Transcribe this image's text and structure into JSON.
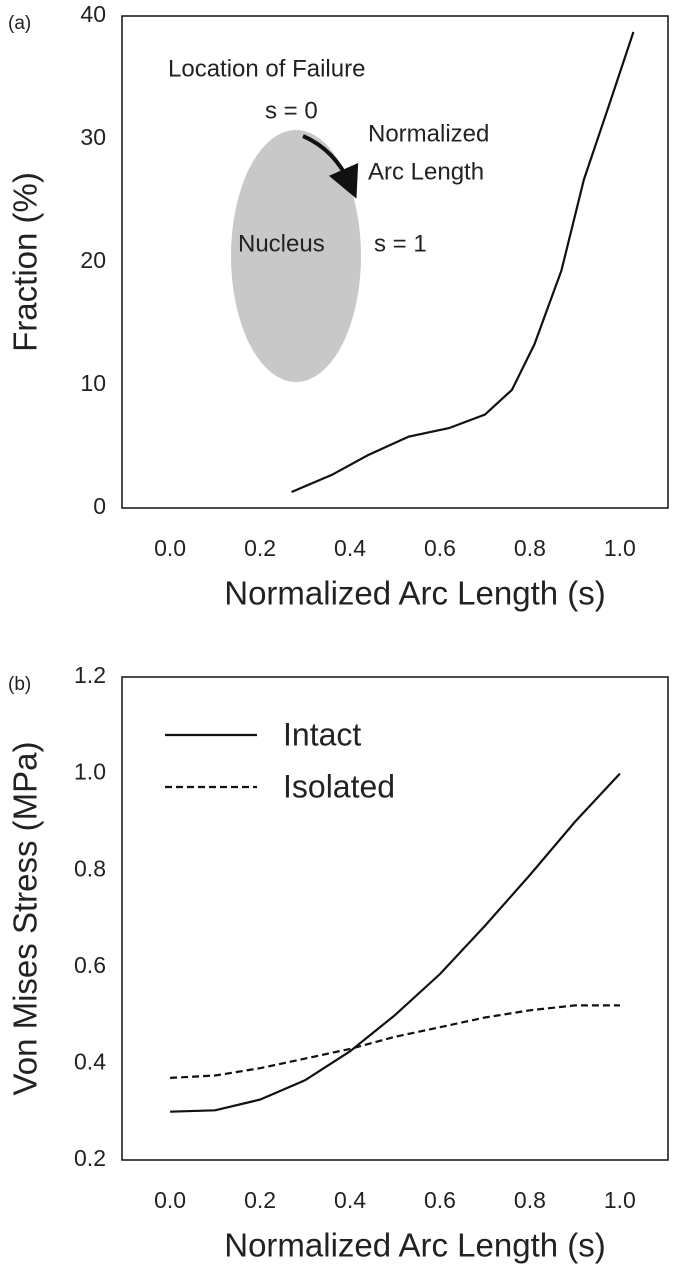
{
  "chart_data": [
    {
      "type": "line",
      "panel_label": "(a)",
      "ylabel": "Fraction (%)",
      "xlabel": "Normalized Arc Length (s)",
      "annotations": [
        "Location of Failure",
        "s = 0",
        "Normalized",
        "Arc Length",
        "Nucleus",
        "s = 1"
      ],
      "x": [
        0.27,
        0.36,
        0.44,
        0.53,
        0.62,
        0.7,
        0.76,
        0.81,
        0.87,
        0.92,
        0.98,
        1.03
      ],
      "values": [
        1.3,
        2.7,
        4.3,
        5.8,
        6.5,
        7.6,
        9.6,
        13.3,
        19.3,
        26.7,
        33.2,
        38.7
      ],
      "color": "#111111",
      "xlim": [
        -0.107,
        1.107
      ],
      "ylim": [
        0,
        40
      ],
      "xticks": [
        {
          "value": 0,
          "label": "0.0"
        },
        0.2,
        0.4,
        0.6,
        0.8,
        {
          "value": 1,
          "label": "1.0"
        }
      ],
      "yticks": [
        0,
        10,
        20,
        30,
        40
      ],
      "grid": false
    },
    {
      "type": "line",
      "panel_label": "(b)",
      "ylabel": "Von Mises Stress (MPa)",
      "xlabel": "Normalized Arc Length (s)",
      "x": [
        0,
        0.1,
        0.2,
        0.3,
        0.4,
        0.5,
        0.6,
        0.7,
        0.8,
        0.9,
        1.0
      ],
      "series": [
        {
          "name": "Intact",
          "color": "#111111",
          "style": "solid",
          "values": [
            0.3,
            0.303,
            0.325,
            0.365,
            0.425,
            0.5,
            0.585,
            0.685,
            0.79,
            0.9,
            1.0
          ]
        },
        {
          "name": "Isolated",
          "color": "#111111",
          "style": "dashed",
          "values": [
            0.37,
            0.375,
            0.39,
            0.41,
            0.43,
            0.455,
            0.475,
            0.495,
            0.51,
            0.52,
            0.52
          ]
        }
      ],
      "legend": "upper left",
      "xlim": [
        -0.107,
        1.107
      ],
      "ylim": [
        0.2,
        1.2
      ],
      "xticks": [
        {
          "value": 0,
          "label": "0.0"
        },
        0.2,
        0.4,
        0.6,
        0.8,
        {
          "value": 1,
          "label": "1.0"
        }
      ],
      "yticks": [
        0.2,
        0.4,
        0.6,
        0.8,
        {
          "value": 1,
          "label": "1.0"
        },
        1.2
      ],
      "grid": false
    }
  ]
}
